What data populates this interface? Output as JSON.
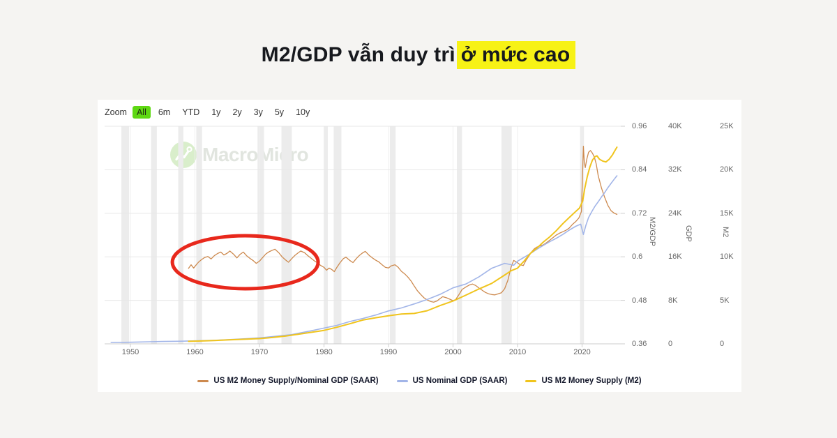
{
  "title": {
    "prefix": "M2/GDP vẫn duy trì",
    "highlight": "ở mức cao"
  },
  "toolbar": {
    "zoom_label": "Zoom",
    "ranges": [
      "All",
      "6m",
      "YTD",
      "1y",
      "2y",
      "3y",
      "5y",
      "10y"
    ],
    "active_range": "All"
  },
  "watermark": {
    "brand": "MacroMicro"
  },
  "axes": {
    "x_ticks": [
      "1950",
      "1960",
      "1970",
      "1980",
      "1990",
      "2000",
      "2010",
      "2020"
    ],
    "ratio": {
      "label": "M2/GDP",
      "ticks": [
        "0.96",
        "0.84",
        "0.72",
        "0.6",
        "0.48",
        "0.36"
      ]
    },
    "gdp": {
      "label": "GDP",
      "ticks": [
        "40K",
        "32K",
        "24K",
        "16K",
        "8K",
        "0"
      ]
    },
    "m2": {
      "label": "M2",
      "ticks": [
        "25K",
        "20K",
        "15K",
        "10K",
        "5K",
        "0"
      ]
    }
  },
  "legend": [
    {
      "label": "US M2 Money Supply/Nominal GDP (SAAR)",
      "color": "#cd8a4f"
    },
    {
      "label": "US Nominal GDP (SAAR)",
      "color": "#a2b5e8"
    },
    {
      "label": "US M2 Money Supply (M2)",
      "color": "#f0c41d"
    }
  ],
  "chart_data": {
    "type": "line",
    "title": "M2/GDP vẫn duy trì ở mức cao",
    "x_range": [
      1946,
      2026
    ],
    "x_ticks": [
      1950,
      1960,
      1970,
      1980,
      1990,
      2000,
      2010,
      2020
    ],
    "axis_ranges": {
      "ratio": [
        0.36,
        0.96
      ],
      "gdp": [
        0,
        40
      ],
      "m2": [
        0,
        25
      ]
    },
    "grid": true,
    "legend_position": "bottom",
    "series": [
      {
        "name": "US M2 Money Supply/Nominal GDP (SAAR)",
        "axis": "ratio",
        "unit": "ratio",
        "color": "#cd8a4f",
        "width": 1.3,
        "points": [
          [
            1959,
            0.568
          ],
          [
            1959.4,
            0.578
          ],
          [
            1959.8,
            0.569
          ],
          [
            1960.2,
            0.578
          ],
          [
            1960.6,
            0.586
          ],
          [
            1961,
            0.592
          ],
          [
            1961.5,
            0.598
          ],
          [
            1962,
            0.601
          ],
          [
            1962.5,
            0.594
          ],
          [
            1963,
            0.603
          ],
          [
            1963.5,
            0.609
          ],
          [
            1964,
            0.613
          ],
          [
            1964.5,
            0.605
          ],
          [
            1965,
            0.61
          ],
          [
            1965.4,
            0.616
          ],
          [
            1966,
            0.607
          ],
          [
            1966.5,
            0.597
          ],
          [
            1967,
            0.607
          ],
          [
            1967.5,
            0.613
          ],
          [
            1968,
            0.603
          ],
          [
            1968.5,
            0.596
          ],
          [
            1969,
            0.59
          ],
          [
            1969.5,
            0.582
          ],
          [
            1970,
            0.588
          ],
          [
            1970.5,
            0.598
          ],
          [
            1971,
            0.608
          ],
          [
            1971.5,
            0.614
          ],
          [
            1972,
            0.618
          ],
          [
            1972.4,
            0.621
          ],
          [
            1973,
            0.611
          ],
          [
            1973.5,
            0.6
          ],
          [
            1974,
            0.592
          ],
          [
            1974.5,
            0.585
          ],
          [
            1975,
            0.595
          ],
          [
            1975.5,
            0.604
          ],
          [
            1976,
            0.611
          ],
          [
            1976.4,
            0.616
          ],
          [
            1977,
            0.611
          ],
          [
            1977.5,
            0.603
          ],
          [
            1978,
            0.596
          ],
          [
            1978.5,
            0.589
          ],
          [
            1979,
            0.583
          ],
          [
            1979.5,
            0.576
          ],
          [
            1980,
            0.571
          ],
          [
            1980.4,
            0.563
          ],
          [
            1980.8,
            0.569
          ],
          [
            1981.2,
            0.565
          ],
          [
            1981.6,
            0.559
          ],
          [
            1982,
            0.571
          ],
          [
            1982.5,
            0.584
          ],
          [
            1983,
            0.595
          ],
          [
            1983.4,
            0.599
          ],
          [
            1984,
            0.59
          ],
          [
            1984.5,
            0.584
          ],
          [
            1985,
            0.595
          ],
          [
            1985.5,
            0.604
          ],
          [
            1986,
            0.611
          ],
          [
            1986.4,
            0.615
          ],
          [
            1987,
            0.604
          ],
          [
            1987.5,
            0.597
          ],
          [
            1988,
            0.591
          ],
          [
            1988.5,
            0.586
          ],
          [
            1989,
            0.578
          ],
          [
            1989.5,
            0.571
          ],
          [
            1990,
            0.569
          ],
          [
            1990.4,
            0.575
          ],
          [
            1991,
            0.578
          ],
          [
            1991.5,
            0.571
          ],
          [
            1992,
            0.56
          ],
          [
            1992.5,
            0.553
          ],
          [
            1993,
            0.544
          ],
          [
            1993.5,
            0.533
          ],
          [
            1994,
            0.519
          ],
          [
            1994.5,
            0.506
          ],
          [
            1995,
            0.496
          ],
          [
            1995.5,
            0.487
          ],
          [
            1996,
            0.481
          ],
          [
            1996.5,
            0.477
          ],
          [
            1997,
            0.475
          ],
          [
            1997.5,
            0.478
          ],
          [
            1998,
            0.485
          ],
          [
            1998.4,
            0.49
          ],
          [
            1999,
            0.487
          ],
          [
            1999.5,
            0.483
          ],
          [
            2000,
            0.479
          ],
          [
            2000.4,
            0.482
          ],
          [
            2001,
            0.498
          ],
          [
            2001.4,
            0.51
          ],
          [
            2002,
            0.517
          ],
          [
            2002.5,
            0.522
          ],
          [
            2003,
            0.525
          ],
          [
            2003.5,
            0.521
          ],
          [
            2004,
            0.514
          ],
          [
            2004.5,
            0.508
          ],
          [
            2005,
            0.502
          ],
          [
            2005.5,
            0.498
          ],
          [
            2006,
            0.496
          ],
          [
            2006.5,
            0.495
          ],
          [
            2007,
            0.498
          ],
          [
            2007.5,
            0.501
          ],
          [
            2008,
            0.512
          ],
          [
            2008.5,
            0.535
          ],
          [
            2009,
            0.572
          ],
          [
            2009.4,
            0.59
          ],
          [
            2009.9,
            0.585
          ],
          [
            2010.4,
            0.578
          ],
          [
            2010.9,
            0.576
          ],
          [
            2011.3,
            0.59
          ],
          [
            2011.8,
            0.603
          ],
          [
            2012.2,
            0.614
          ],
          [
            2012.6,
            0.622
          ],
          [
            2013,
            0.627
          ],
          [
            2013.5,
            0.63
          ],
          [
            2014,
            0.633
          ],
          [
            2014.5,
            0.639
          ],
          [
            2015,
            0.646
          ],
          [
            2015.5,
            0.653
          ],
          [
            2016,
            0.66
          ],
          [
            2016.5,
            0.665
          ],
          [
            2017,
            0.669
          ],
          [
            2017.5,
            0.673
          ],
          [
            2018,
            0.679
          ],
          [
            2018.5,
            0.689
          ],
          [
            2019,
            0.697
          ],
          [
            2019.5,
            0.707
          ],
          [
            2019.9,
            0.725
          ],
          [
            2020.2,
            0.905
          ],
          [
            2020.35,
            0.862
          ],
          [
            2020.5,
            0.846
          ],
          [
            2020.75,
            0.87
          ],
          [
            2021,
            0.888
          ],
          [
            2021.3,
            0.893
          ],
          [
            2021.6,
            0.886
          ],
          [
            2021.9,
            0.875
          ],
          [
            2022.2,
            0.855
          ],
          [
            2022.5,
            0.824
          ],
          [
            2023,
            0.79
          ],
          [
            2023.5,
            0.764
          ],
          [
            2024,
            0.742
          ],
          [
            2024.5,
            0.727
          ],
          [
            2025,
            0.72
          ],
          [
            2025.4,
            0.717
          ]
        ]
      },
      {
        "name": "US Nominal GDP (SAAR)",
        "axis": "gdp",
        "unit": "K USD bn",
        "color": "#a2b5e8",
        "width": 1.6,
        "points": [
          [
            1947,
            0.26
          ],
          [
            1950,
            0.3
          ],
          [
            1953,
            0.39
          ],
          [
            1955,
            0.44
          ],
          [
            1958,
            0.49
          ],
          [
            1960,
            0.55
          ],
          [
            1963,
            0.65
          ],
          [
            1965,
            0.76
          ],
          [
            1968,
            0.95
          ],
          [
            1970,
            1.1
          ],
          [
            1973,
            1.45
          ],
          [
            1975,
            1.7
          ],
          [
            1978,
            2.4
          ],
          [
            1980,
            2.9
          ],
          [
            1982,
            3.4
          ],
          [
            1984,
            4.1
          ],
          [
            1986,
            4.65
          ],
          [
            1988,
            5.3
          ],
          [
            1990,
            6.05
          ],
          [
            1992,
            6.6
          ],
          [
            1994,
            7.35
          ],
          [
            1996,
            8.15
          ],
          [
            1998,
            9.1
          ],
          [
            2000,
            10.3
          ],
          [
            2002,
            11
          ],
          [
            2004,
            12.3
          ],
          [
            2006,
            13.9
          ],
          [
            2008,
            14.8
          ],
          [
            2008.8,
            14.6
          ],
          [
            2009.4,
            14.45
          ],
          [
            2010,
            15.2
          ],
          [
            2011,
            15.9
          ],
          [
            2012,
            16.6
          ],
          [
            2013,
            17.4
          ],
          [
            2014,
            18.1
          ],
          [
            2015,
            18.8
          ],
          [
            2016,
            19.4
          ],
          [
            2017,
            20.1
          ],
          [
            2018,
            20.9
          ],
          [
            2019,
            21.6
          ],
          [
            2019.8,
            22
          ],
          [
            2020.2,
            20.1
          ],
          [
            2020.6,
            21.8
          ],
          [
            2021,
            23.2
          ],
          [
            2021.5,
            24.3
          ],
          [
            2022,
            25.3
          ],
          [
            2022.5,
            26.1
          ],
          [
            2023,
            27
          ],
          [
            2023.5,
            27.8
          ],
          [
            2024,
            28.7
          ],
          [
            2024.5,
            29.5
          ],
          [
            2025,
            30.3
          ],
          [
            2025.4,
            30.9
          ]
        ]
      },
      {
        "name": "US M2 Money Supply (M2)",
        "axis": "m2",
        "unit": "K USD bn",
        "color": "#f0c41d",
        "width": 2,
        "points": [
          [
            1959,
            0.29
          ],
          [
            1961,
            0.33
          ],
          [
            1963,
            0.38
          ],
          [
            1965,
            0.45
          ],
          [
            1967,
            0.51
          ],
          [
            1969,
            0.57
          ],
          [
            1970,
            0.6
          ],
          [
            1972,
            0.73
          ],
          [
            1974,
            0.89
          ],
          [
            1976,
            1.1
          ],
          [
            1978,
            1.32
          ],
          [
            1980,
            1.55
          ],
          [
            1982,
            1.91
          ],
          [
            1984,
            2.31
          ],
          [
            1986,
            2.73
          ],
          [
            1988,
            3
          ],
          [
            1990,
            3.22
          ],
          [
            1992,
            3.42
          ],
          [
            1994,
            3.49
          ],
          [
            1996,
            3.81
          ],
          [
            1998,
            4.4
          ],
          [
            2000,
            4.92
          ],
          [
            2002,
            5.6
          ],
          [
            2004,
            6.3
          ],
          [
            2006,
            6.95
          ],
          [
            2008,
            7.9
          ],
          [
            2009,
            8.4
          ],
          [
            2010,
            8.7
          ],
          [
            2011,
            9.5
          ],
          [
            2012,
            10.4
          ],
          [
            2013,
            11
          ],
          [
            2014,
            11.7
          ],
          [
            2015,
            12.3
          ],
          [
            2016,
            13
          ],
          [
            2017,
            13.8
          ],
          [
            2018,
            14.5
          ],
          [
            2019,
            15.2
          ],
          [
            2019.6,
            15.6
          ],
          [
            2020.1,
            16.4
          ],
          [
            2020.4,
            17.8
          ],
          [
            2020.8,
            19.2
          ],
          [
            2021.2,
            20.3
          ],
          [
            2021.6,
            21.1
          ],
          [
            2022,
            21.5
          ],
          [
            2022.3,
            21.6
          ],
          [
            2022.7,
            21.2
          ],
          [
            2023.2,
            21
          ],
          [
            2023.7,
            20.9
          ],
          [
            2024.2,
            21.2
          ],
          [
            2024.7,
            21.7
          ],
          [
            2025,
            22.1
          ],
          [
            2025.4,
            22.6
          ]
        ]
      }
    ],
    "recession_bands": [
      [
        1948.6,
        1949.8
      ],
      [
        1953.2,
        1954.1
      ],
      [
        1957.4,
        1958.2
      ],
      [
        1960.2,
        1961.1
      ],
      [
        1969.7,
        1970.7
      ],
      [
        1973.4,
        1975
      ],
      [
        1980,
        1980.6
      ],
      [
        1981.5,
        1982.7
      ],
      [
        1990.2,
        1991.1
      ],
      [
        2000.6,
        2001.4
      ],
      [
        2007.5,
        2009.1
      ],
      [
        2019.7,
        2020.3
      ]
    ],
    "annotation_ellipse": {
      "cx_year": 1967.8,
      "cy_value": 0.585,
      "rx_years": 11.3,
      "ry_value": 0.073,
      "color": "#e8281c",
      "stroke_width": 5
    }
  },
  "colors": {
    "background": "#f5f4f2",
    "card": "#ffffff",
    "title_text": "#17191e",
    "highlight_bg": "#f7f216",
    "accent_green": "#5ed813",
    "band": "#ececec",
    "grid_h": "#e7e7e7",
    "grid_v": "#efefef",
    "axis_line": "#cccccc",
    "tick_text": "#666666",
    "legend_text": "#14182b",
    "annotation_red": "#e8281c",
    "watermark_text": "#e1e5df",
    "watermark_logo": "#d9eecb"
  }
}
